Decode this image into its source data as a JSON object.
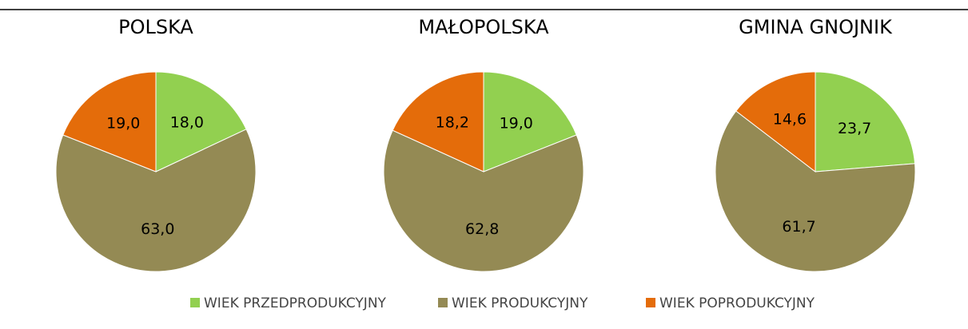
{
  "chart_data": [
    {
      "type": "pie",
      "title": "POLSKA",
      "values": [
        18.0,
        63.0,
        19.0
      ],
      "value_labels": [
        "18,0",
        "63,0",
        "19,0"
      ]
    },
    {
      "type": "pie",
      "title": "MAŁOPOLSKA",
      "values": [
        19.0,
        62.8,
        18.2
      ],
      "value_labels": [
        "19,0",
        "62,8",
        "18,2"
      ]
    },
    {
      "type": "pie",
      "title": "GMINA GNOJNIK",
      "values": [
        23.7,
        61.7,
        14.6
      ],
      "value_labels": [
        "23,7",
        "61,7",
        "14,6"
      ]
    }
  ],
  "legend": {
    "labels": [
      "WIEK PRZEDPRODUKCYJNY",
      "WIEK PRODUKCYJNY",
      "WIEK POPRODUKCYJNY"
    ],
    "colors": [
      "#92d050",
      "#948a54",
      "#e46c0a"
    ]
  }
}
